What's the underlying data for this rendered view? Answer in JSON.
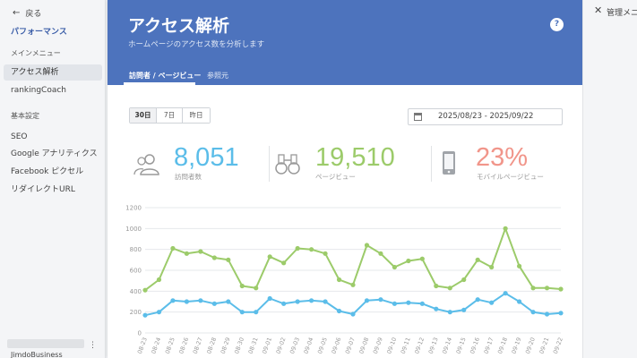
{
  "sidebar": {
    "back_label": "戻る",
    "title": "パフォーマンス",
    "sections": [
      {
        "heading": "メインメニュー",
        "items": [
          "アクセス解析",
          "rankingCoach"
        ]
      },
      {
        "heading": "基本設定",
        "items": [
          "SEO",
          "Google アナリティクス",
          "Facebook ピクセル",
          "リダイレクトURL"
        ]
      }
    ],
    "active_item": "アクセス解析",
    "brand": "JimdoBusiness"
  },
  "header": {
    "title": "アクセス解析",
    "subtitle": "ホームページのアクセス数を分析します",
    "help_label": "?",
    "tabs": [
      "訪問者 / ページビュー",
      "参照元"
    ],
    "active_tab": 0
  },
  "controls": {
    "ranges": [
      "30日",
      "7日",
      "昨日"
    ],
    "active_range": "30日",
    "date_range": "2025/08/23 - 2025/09/22"
  },
  "stats": [
    {
      "value": "8,051",
      "label": "訪問者数",
      "icon": "users-icon",
      "color": "#5bbde9"
    },
    {
      "value": "19,510",
      "label": "ページビュー",
      "icon": "binoculars-icon",
      "color": "#9ccb6a"
    },
    {
      "value": "23%",
      "label": "モバイルページビュー",
      "icon": "smartphone-icon",
      "color": "#f1958a"
    }
  ],
  "chart_data": {
    "type": "line",
    "x": [
      "08-23",
      "08-24",
      "08-25",
      "08-26",
      "08-27",
      "08-28",
      "08-29",
      "08-30",
      "08-31",
      "09-01",
      "09-02",
      "09-03",
      "09-04",
      "09-05",
      "09-06",
      "09-07",
      "09-08",
      "09-09",
      "09-10",
      "09-11",
      "09-12",
      "09-13",
      "09-14",
      "09-15",
      "09-16",
      "09-17",
      "09-18",
      "09-19",
      "09-20",
      "09-21",
      "09-22"
    ],
    "x_tick_labels": [
      "08-23",
      "08-24",
      "08-25",
      "08-26",
      "08-27",
      "08-28",
      "08-29",
      "08-30",
      "08-31",
      "09-01",
      "09-02",
      "09-03",
      "09-04",
      "09-05",
      "09-06",
      "09-07",
      "09-08",
      "09-09",
      "09-10",
      "09-11",
      "09-12",
      "09-13",
      "09-14",
      "09-15",
      "09-16",
      "09-17",
      "09-18",
      "09-19",
      "09-20",
      "09-21",
      "09-22"
    ],
    "series": [
      {
        "color": "#9ccb6a",
        "values": [
          410,
          510,
          810,
          760,
          780,
          720,
          700,
          450,
          430,
          730,
          670,
          810,
          800,
          760,
          510,
          460,
          840,
          760,
          630,
          690,
          710,
          450,
          430,
          510,
          700,
          630,
          1000,
          640,
          430,
          430,
          420
        ]
      },
      {
        "color": "#5bbde9",
        "values": [
          170,
          200,
          310,
          300,
          310,
          280,
          300,
          200,
          200,
          330,
          280,
          300,
          310,
          300,
          210,
          180,
          310,
          320,
          280,
          290,
          280,
          230,
          200,
          220,
          320,
          290,
          380,
          300,
          200,
          180,
          190
        ]
      }
    ],
    "ylim": [
      0,
      1200
    ],
    "yticks": [
      0,
      200,
      400,
      600,
      800,
      1000,
      1200
    ],
    "grid": true
  },
  "right_panel": {
    "close_label": "✕",
    "title": "管理メニュー"
  }
}
